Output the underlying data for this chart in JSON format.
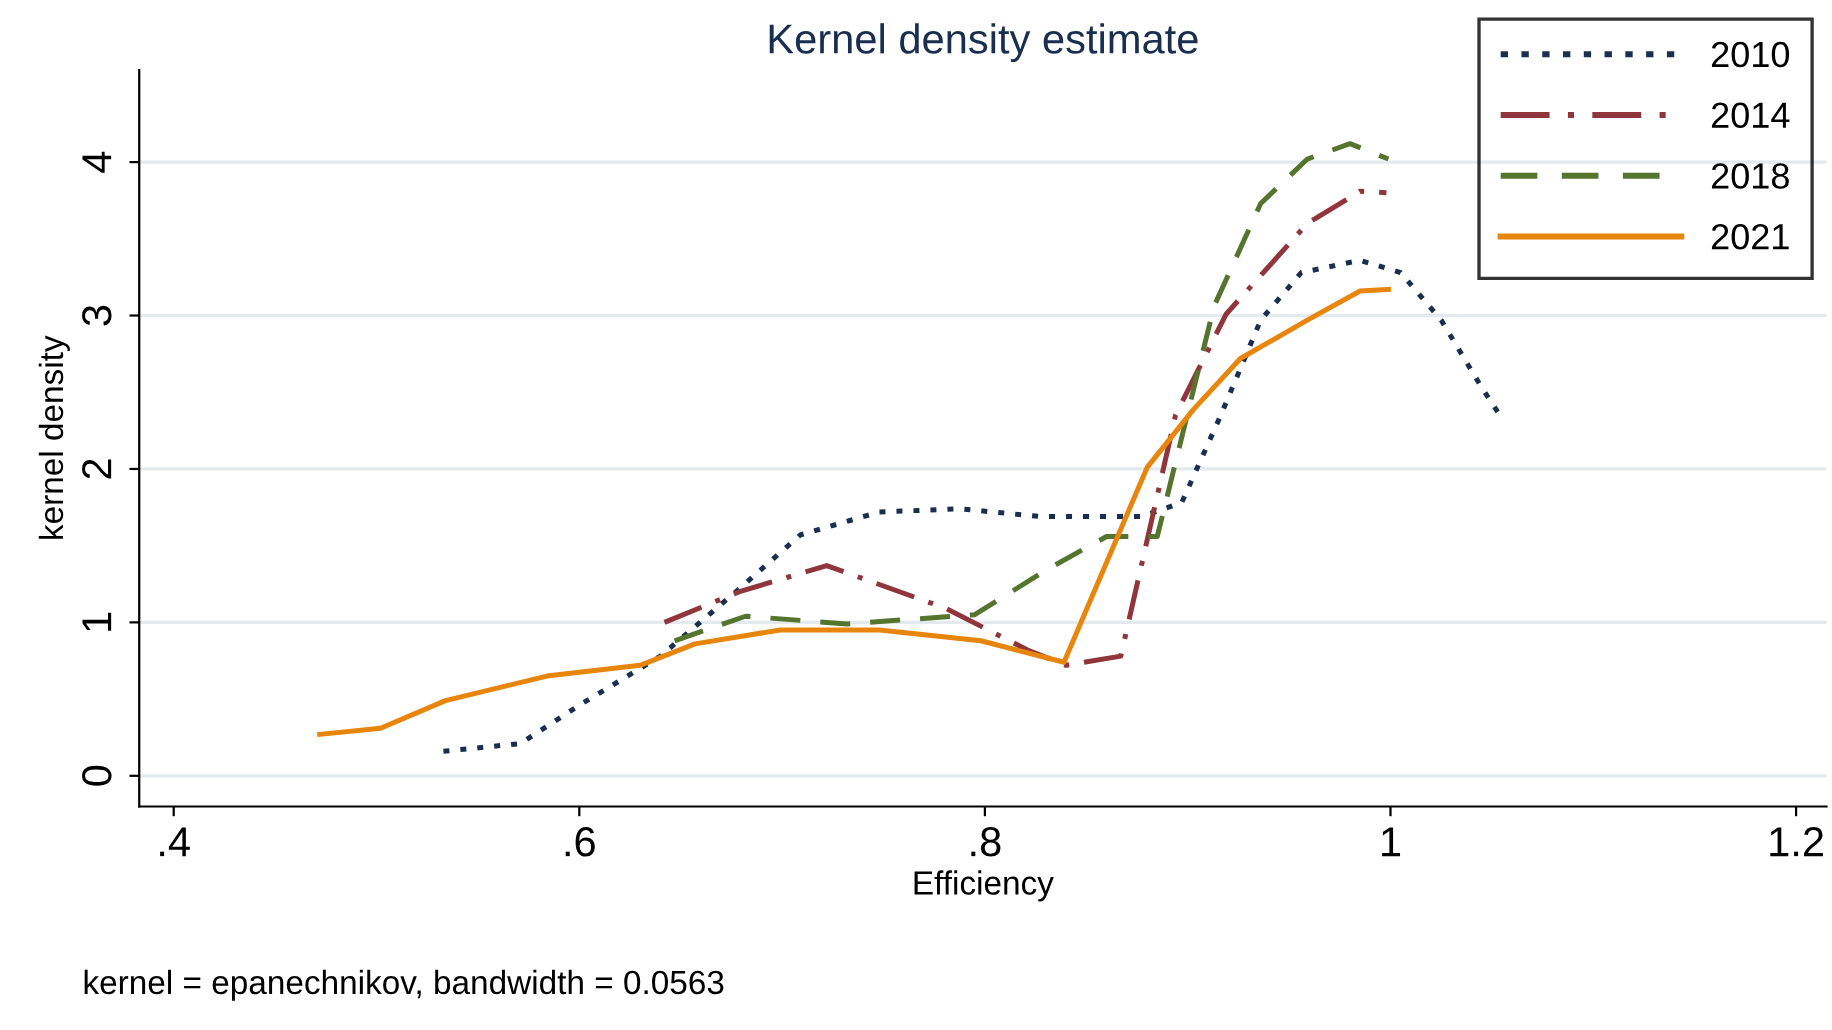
{
  "chart_data": {
    "type": "line",
    "title": "Kernel density estimate",
    "xlabel": "Efficiency",
    "ylabel": "kernel density",
    "annotations": [
      "kernel = epanechnikov, bandwidth = 0.0563"
    ],
    "xlim": [
      0.383,
      1.215
    ],
    "ylim": [
      -0.2,
      4.6
    ],
    "xticks": [
      {
        "value": 0.4,
        "label": ".4"
      },
      {
        "value": 0.6,
        "label": ".6"
      },
      {
        "value": 0.8,
        "label": ".8"
      },
      1,
      {
        "value": 1.2,
        "label": "1.2"
      }
    ],
    "yticks": [
      0,
      1,
      2,
      3,
      4
    ],
    "grid": "y",
    "legend": "top right",
    "marker": "none",
    "series": [
      {
        "name": "2010",
        "color": "#1a2f4f",
        "line_style": "dotted",
        "x": [
          0.533,
          0.571,
          0.6,
          0.64,
          0.679,
          0.709,
          0.748,
          0.788,
          0.827,
          0.877,
          0.897,
          0.916,
          0.936,
          0.956,
          0.985,
          1.005,
          1.025,
          1.045,
          1.054
        ],
        "values": [
          0.16,
          0.21,
          0.46,
          0.78,
          1.22,
          1.57,
          1.72,
          1.74,
          1.69,
          1.69,
          1.78,
          2.34,
          2.97,
          3.28,
          3.36,
          3.28,
          2.97,
          2.53,
          2.35
        ]
      },
      {
        "name": "2014",
        "color": "#90353b",
        "line_style": "dashdot",
        "x": [
          0.642,
          0.679,
          0.722,
          0.781,
          0.821,
          0.84,
          0.867,
          0.894,
          0.919,
          0.959,
          0.985,
          0.998
        ],
        "values": [
          1.0,
          1.2,
          1.37,
          1.09,
          0.82,
          0.72,
          0.78,
          2.35,
          3.01,
          3.6,
          3.81,
          3.8
        ]
      },
      {
        "name": "2018",
        "color": "#55752f",
        "line_style": "dashed",
        "x": [
          0.647,
          0.682,
          0.732,
          0.795,
          0.83,
          0.86,
          0.885,
          0.913,
          0.936,
          0.959,
          0.98,
          0.999
        ],
        "values": [
          0.88,
          1.04,
          0.99,
          1.05,
          1.34,
          1.56,
          1.56,
          3.06,
          3.73,
          4.02,
          4.12,
          4.02
        ]
      },
      {
        "name": "2021",
        "color": "#e8850c",
        "line_style": "solid",
        "x": [
          0.472,
          0.502,
          0.534,
          0.584,
          0.63,
          0.657,
          0.699,
          0.748,
          0.798,
          0.839,
          0.88,
          0.903,
          0.926,
          0.959,
          0.985,
          0.999
        ],
        "values": [
          0.27,
          0.31,
          0.49,
          0.65,
          0.72,
          0.86,
          0.95,
          0.95,
          0.88,
          0.74,
          2.01,
          2.39,
          2.72,
          2.97,
          3.16,
          3.17
        ]
      }
    ]
  }
}
